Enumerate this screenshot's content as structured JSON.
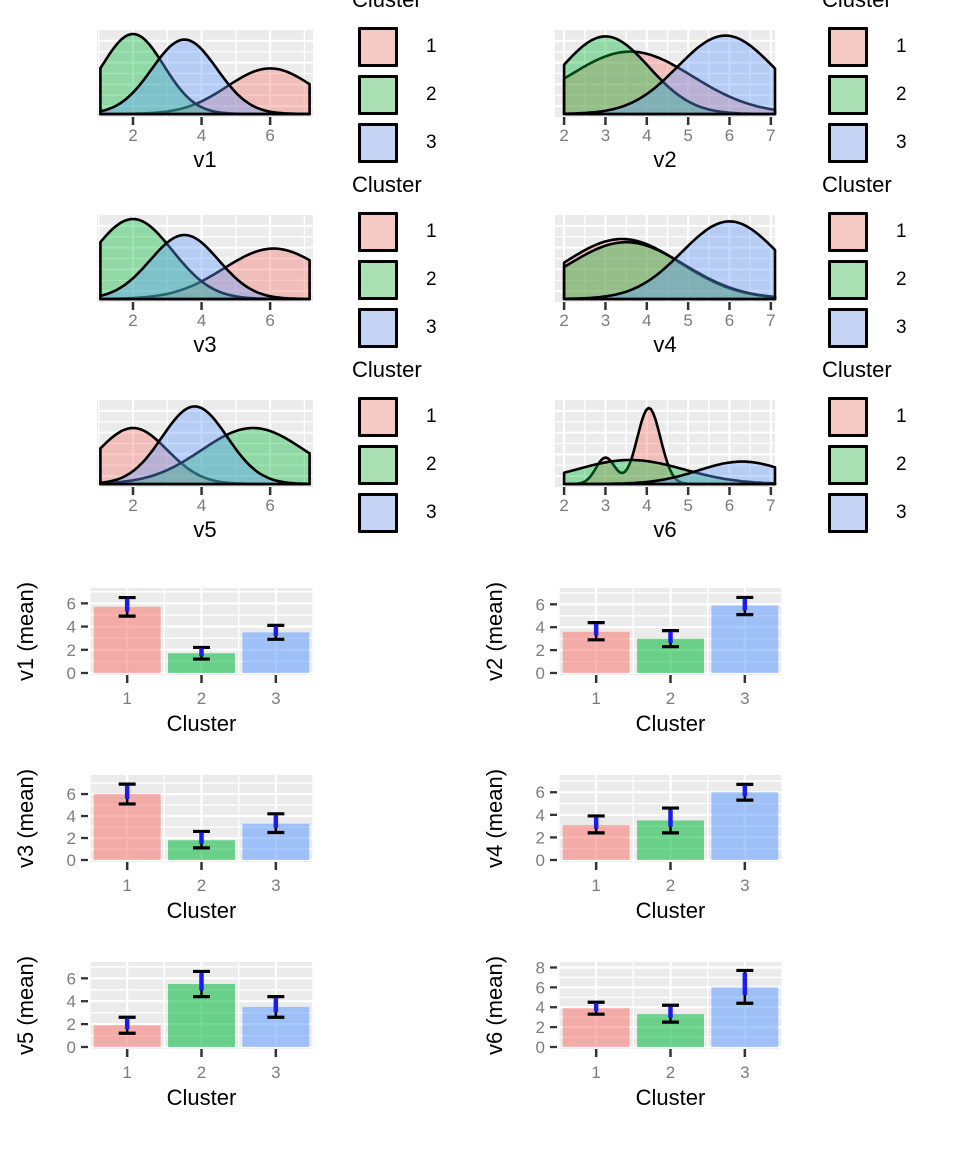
{
  "palette": {
    "cluster_colors": {
      "1": "#F8766D",
      "2": "#00BA38",
      "3": "#619CFF"
    },
    "panel_bg": "#EBEBEB",
    "grid": "#FFFFFF",
    "errorbar_outer": "#000000",
    "errorbar_inner": "#1C1CF0",
    "tick_mark": "#333333",
    "tick_label": "#7C7C7C",
    "axis_title": "#000000",
    "density_fill_opacity": 0.38,
    "bar_fill_opacity": 0.55
  },
  "legend": {
    "title": "Cluster",
    "entries": [
      {
        "label": "1",
        "key_color": "#F5C9C4"
      },
      {
        "label": "2",
        "key_color": "#ABE0B5"
      },
      {
        "label": "3",
        "key_color": "#C5D4F4"
      }
    ]
  },
  "chart_data": [
    {
      "type": "area",
      "id": "v1",
      "xlabel": "v1",
      "x_ticks": [
        2,
        4,
        6
      ],
      "legend_title": "Cluster",
      "series": [
        {
          "name": "Cluster 1",
          "cluster": "1",
          "components": [
            {
              "mean": 6.0,
              "sd": 1.25,
              "height": 0.57
            }
          ]
        },
        {
          "name": "Cluster 2",
          "cluster": "2",
          "components": [
            {
              "mean": 2.0,
              "sd": 0.9,
              "height": 1.0
            }
          ]
        },
        {
          "name": "Cluster 3",
          "cluster": "3",
          "components": [
            {
              "mean": 3.5,
              "sd": 0.95,
              "height": 0.93
            }
          ]
        }
      ]
    },
    {
      "type": "area",
      "id": "v2",
      "xlabel": "v2",
      "x_ticks": [
        2,
        3,
        4,
        5,
        6,
        7
      ],
      "legend_title": "Cluster",
      "series": [
        {
          "name": "Cluster 1",
          "cluster": "1",
          "components": [
            {
              "mean": 3.6,
              "sd": 1.5,
              "height": 0.78
            }
          ]
        },
        {
          "name": "Cluster 2",
          "cluster": "2",
          "components": [
            {
              "mean": 3.0,
              "sd": 1.05,
              "height": 0.97
            }
          ]
        },
        {
          "name": "Cluster 3",
          "cluster": "3",
          "components": [
            {
              "mean": 5.9,
              "sd": 1.15,
              "height": 0.98
            }
          ]
        }
      ]
    },
    {
      "type": "area",
      "id": "v3",
      "xlabel": "v3",
      "x_ticks": [
        2,
        4,
        6
      ],
      "legend_title": "Cluster",
      "series": [
        {
          "name": "Cluster 1",
          "cluster": "1",
          "components": [
            {
              "mean": 6.1,
              "sd": 1.45,
              "height": 0.63
            }
          ]
        },
        {
          "name": "Cluster 2",
          "cluster": "2",
          "components": [
            {
              "mean": 2.0,
              "sd": 1.15,
              "height": 1.0
            }
          ]
        },
        {
          "name": "Cluster 3",
          "cluster": "3",
          "components": [
            {
              "mean": 3.5,
              "sd": 1.0,
              "height": 0.8
            }
          ]
        }
      ]
    },
    {
      "type": "area",
      "id": "v4",
      "xlabel": "v4",
      "x_ticks": [
        2,
        3,
        4,
        5,
        6,
        7
      ],
      "legend_title": "Cluster",
      "series": [
        {
          "name": "Cluster 1",
          "cluster": "1",
          "components": [
            {
              "mean": 3.4,
              "sd": 1.4,
              "height": 0.75
            }
          ]
        },
        {
          "name": "Cluster 2",
          "cluster": "2",
          "components": [
            {
              "mean": 3.5,
              "sd": 1.4,
              "height": 0.71
            }
          ]
        },
        {
          "name": "Cluster 3",
          "cluster": "3",
          "components": [
            {
              "mean": 6.0,
              "sd": 1.15,
              "height": 0.97
            }
          ]
        }
      ]
    },
    {
      "type": "area",
      "id": "v5",
      "xlabel": "v5",
      "x_ticks": [
        2,
        4,
        6
      ],
      "legend_title": "Cluster",
      "series": [
        {
          "name": "Cluster 1",
          "cluster": "1",
          "components": [
            {
              "mean": 2.0,
              "sd": 1.0,
              "height": 0.7
            }
          ]
        },
        {
          "name": "Cluster 2",
          "cluster": "2",
          "components": [
            {
              "mean": 5.5,
              "sd": 1.5,
              "height": 0.7
            }
          ]
        },
        {
          "name": "Cluster 3",
          "cluster": "3",
          "components": [
            {
              "mean": 3.8,
              "sd": 0.95,
              "height": 0.97
            }
          ]
        }
      ]
    },
    {
      "type": "area",
      "id": "v6",
      "xlabel": "v6",
      "x_ticks": [
        2,
        3,
        4,
        5,
        6,
        7
      ],
      "legend_title": "Cluster",
      "series": [
        {
          "name": "Cluster 1",
          "cluster": "1",
          "components": [
            {
              "mean": 3.0,
              "sd": 0.23,
              "height": 0.33
            },
            {
              "mean": 4.05,
              "sd": 0.28,
              "height": 0.95
            }
          ]
        },
        {
          "name": "Cluster 2",
          "cluster": "2",
          "components": [
            {
              "mean": 3.6,
              "sd": 1.3,
              "height": 0.3
            }
          ]
        },
        {
          "name": "Cluster 3",
          "cluster": "3",
          "components": [
            {
              "mean": 6.3,
              "sd": 1.05,
              "height": 0.28
            }
          ]
        }
      ]
    },
    {
      "type": "bar",
      "id": "v1_mean",
      "ylabel": "v1 (mean)",
      "xlabel": "Cluster",
      "categories": [
        "1",
        "2",
        "3"
      ],
      "values": [
        5.7,
        1.7,
        3.5
      ],
      "error_low": [
        4.9,
        1.2,
        2.9
      ],
      "error_high": [
        6.5,
        2.2,
        4.1
      ],
      "y_ticks": [
        0,
        2,
        4,
        6
      ]
    },
    {
      "type": "bar",
      "id": "v2_mean",
      "ylabel": "v2 (mean)",
      "xlabel": "Cluster",
      "categories": [
        "1",
        "2",
        "3"
      ],
      "values": [
        3.6,
        3.0,
        5.9
      ],
      "error_low": [
        2.9,
        2.3,
        5.1
      ],
      "error_high": [
        4.4,
        3.7,
        6.6
      ],
      "y_ticks": [
        0,
        2,
        4,
        6
      ]
    },
    {
      "type": "bar",
      "id": "v3_mean",
      "ylabel": "v3 (mean)",
      "xlabel": "Cluster",
      "categories": [
        "1",
        "2",
        "3"
      ],
      "values": [
        6.0,
        1.8,
        3.3
      ],
      "error_low": [
        5.1,
        1.1,
        2.5
      ],
      "error_high": [
        6.9,
        2.6,
        4.2
      ],
      "y_ticks": [
        0,
        2,
        4,
        6
      ]
    },
    {
      "type": "bar",
      "id": "v4_mean",
      "ylabel": "v4 (mean)",
      "xlabel": "Cluster",
      "categories": [
        "1",
        "2",
        "3"
      ],
      "values": [
        3.1,
        3.5,
        6.0
      ],
      "error_low": [
        2.4,
        2.4,
        5.3
      ],
      "error_high": [
        3.9,
        4.6,
        6.7
      ],
      "y_ticks": [
        0,
        2,
        4,
        6
      ]
    },
    {
      "type": "bar",
      "id": "v5_mean",
      "ylabel": "v5 (mean)",
      "xlabel": "Cluster",
      "categories": [
        "1",
        "2",
        "3"
      ],
      "values": [
        1.9,
        5.5,
        3.5
      ],
      "error_low": [
        1.2,
        4.4,
        2.6
      ],
      "error_high": [
        2.6,
        6.6,
        4.4
      ],
      "y_ticks": [
        0,
        2,
        4,
        6
      ]
    },
    {
      "type": "bar",
      "id": "v6_mean",
      "ylabel": "v6 (mean)",
      "xlabel": "Cluster",
      "categories": [
        "1",
        "2",
        "3"
      ],
      "values": [
        3.9,
        3.3,
        6.0
      ],
      "error_low": [
        3.3,
        2.5,
        4.4
      ],
      "error_high": [
        4.5,
        4.2,
        7.7
      ],
      "y_ticks": [
        0,
        2,
        4,
        6,
        8
      ]
    }
  ]
}
